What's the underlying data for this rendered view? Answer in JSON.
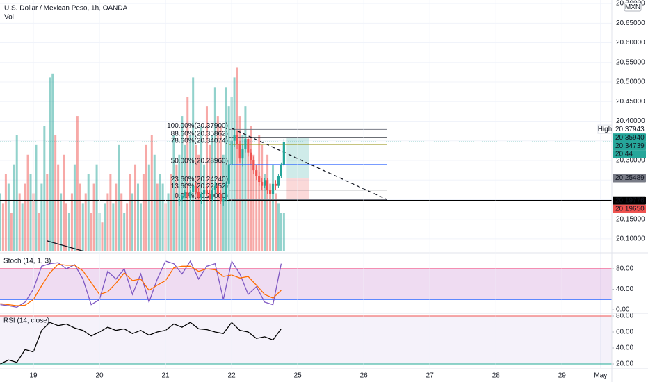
{
  "chart_data": [
    {
      "type": "candlestick",
      "title": "U.S. Dollar / Mexican Peso, 1h, OANDA",
      "currency": "MXN",
      "xlim": [
        -12.12,
        210.1
      ],
      "xticks": [
        {
          "value": 0,
          "label": "19"
        },
        {
          "value": 24,
          "label": "20"
        },
        {
          "value": 48,
          "label": "21"
        },
        {
          "value": 72,
          "label": "22"
        },
        {
          "value": 96,
          "label": "25"
        },
        {
          "value": 120,
          "label": "26"
        },
        {
          "value": 144,
          "label": "27"
        },
        {
          "value": 168,
          "label": "28"
        },
        {
          "value": 192,
          "label": "29"
        },
        {
          "value": 206,
          "label": "May"
        }
      ],
      "ylim": [
        20.068,
        20.709
      ],
      "yticks": [
        {
          "value": 20.1,
          "label": "20.10000"
        },
        {
          "value": 20.15,
          "label": "20.15000"
        },
        {
          "value": 20.2,
          "label": "20.20000"
        },
        {
          "value": 20.25,
          "label": "20.25000"
        },
        {
          "value": 20.3,
          "label": "20.30000"
        },
        {
          "value": 20.35,
          "label": "20.35000"
        },
        {
          "value": 20.4,
          "label": "20.40000"
        },
        {
          "value": 20.45,
          "label": "20.45000"
        },
        {
          "value": 20.5,
          "label": "20.50000"
        },
        {
          "value": 20.55,
          "label": "20.55000"
        },
        {
          "value": 20.6,
          "label": "20.60000"
        },
        {
          "value": 20.65,
          "label": "20.65000"
        },
        {
          "value": 20.7,
          "label": "20.70000"
        }
      ],
      "up_color": "#26a69a",
      "down_color": "#ef5350",
      "x": [
        53,
        54,
        55,
        56,
        57,
        58,
        59,
        60,
        61,
        62,
        63,
        64,
        65,
        66,
        67,
        68,
        69,
        70,
        71,
        72,
        73,
        74,
        75,
        76,
        77,
        78,
        79,
        80,
        81,
        82,
        83,
        84,
        85,
        86,
        87,
        88,
        89,
        90,
        91
      ],
      "open": [
        20.195,
        20.2,
        20.21,
        20.22,
        20.205,
        20.22,
        20.235,
        20.22,
        20.205,
        20.215,
        20.225,
        20.215,
        20.2,
        20.225,
        20.235,
        20.215,
        20.195,
        20.2,
        20.24,
        20.29,
        20.35,
        20.365,
        20.34,
        20.305,
        20.33,
        20.355,
        20.32,
        20.3,
        20.275,
        20.26,
        20.245,
        20.235,
        20.25,
        20.225,
        20.215,
        20.24,
        20.235,
        20.26,
        20.29
      ],
      "high": [
        20.205,
        20.215,
        20.225,
        20.235,
        20.225,
        20.24,
        20.245,
        20.23,
        20.22,
        20.23,
        20.235,
        20.225,
        20.23,
        20.245,
        20.24,
        20.225,
        20.205,
        20.245,
        20.3,
        20.36,
        20.379,
        20.375,
        20.35,
        20.34,
        20.365,
        20.36,
        20.33,
        20.31,
        20.29,
        20.27,
        20.255,
        20.255,
        20.255,
        20.235,
        20.245,
        20.25,
        20.265,
        20.295,
        20.355
      ],
      "low": [
        20.185,
        20.195,
        20.205,
        20.2,
        20.195,
        20.215,
        20.215,
        20.2,
        20.19,
        20.205,
        20.21,
        20.195,
        20.195,
        20.215,
        20.21,
        20.19,
        20.185,
        20.195,
        20.235,
        20.285,
        20.335,
        20.33,
        20.295,
        20.285,
        20.32,
        20.31,
        20.29,
        20.265,
        20.25,
        20.235,
        20.225,
        20.23,
        20.215,
        20.205,
        20.21,
        20.225,
        20.23,
        20.255,
        20.285
      ],
      "close": [
        20.2,
        20.21,
        20.22,
        20.205,
        20.22,
        20.235,
        20.22,
        20.205,
        20.215,
        20.225,
        20.215,
        20.2,
        20.225,
        20.235,
        20.215,
        20.195,
        20.2,
        20.24,
        20.29,
        20.35,
        20.365,
        20.34,
        20.305,
        20.33,
        20.355,
        20.32,
        20.3,
        20.275,
        20.26,
        20.245,
        20.235,
        20.25,
        20.225,
        20.215,
        20.24,
        20.235,
        20.26,
        20.29,
        20.347
      ],
      "volume": {
        "name": "Vol",
        "ylim": [
          0,
          130
        ],
        "x": [
          -12,
          -11,
          -10,
          -9,
          -8,
          -7,
          -6,
          -5,
          -4,
          -3,
          -2,
          -1,
          0,
          1,
          2,
          3,
          4,
          5,
          6,
          7,
          8,
          9,
          10,
          11,
          12,
          13,
          14,
          15,
          16,
          17,
          18,
          19,
          20,
          21,
          22,
          23,
          24,
          25,
          26,
          27,
          28,
          29,
          30,
          31,
          32,
          33,
          34,
          35,
          36,
          37,
          38,
          39,
          40,
          41,
          42,
          43,
          44,
          45,
          46,
          47,
          48,
          49,
          50,
          51,
          52,
          53,
          54,
          55,
          56,
          57,
          58,
          59,
          60,
          61,
          62,
          63,
          64,
          65,
          66,
          67,
          68,
          69,
          70,
          71,
          72,
          73,
          74,
          75,
          76,
          77,
          78,
          79,
          80,
          81,
          82,
          83,
          84,
          85,
          86,
          87,
          88,
          89,
          90,
          91
        ],
        "values": [
          30,
          25,
          40,
          35,
          20,
          45,
          60,
          30,
          25,
          35,
          50,
          40,
          30,
          55,
          20,
          35,
          65,
          40,
          90,
          92,
          60,
          45,
          30,
          50,
          25,
          20,
          30,
          45,
          70,
          35,
          25,
          30,
          40,
          20,
          35,
          45,
          20,
          15,
          25,
          30,
          40,
          25,
          35,
          55,
          30,
          20,
          25,
          40,
          30,
          45,
          35,
          25,
          40,
          55,
          45,
          60,
          50,
          35,
          40,
          35,
          25,
          30,
          40,
          60,
          45,
          50,
          70,
          55,
          80,
          60,
          90,
          55,
          50,
          65,
          45,
          75,
          55,
          60,
          85,
          70,
          65,
          50,
          85,
          75,
          80,
          90,
          95,
          70,
          60,
          75,
          55,
          65,
          50,
          45,
          60,
          55,
          40,
          50,
          35,
          45,
          30,
          25,
          20,
          20
        ],
        "up": [
          1,
          0,
          0,
          1,
          0,
          1,
          1,
          0,
          1,
          0,
          0,
          1,
          0,
          1,
          0,
          1,
          1,
          0,
          1,
          1,
          0,
          0,
          1,
          0,
          0,
          1,
          0,
          1,
          0,
          0,
          1,
          0,
          1,
          0,
          0,
          1,
          1,
          0,
          1,
          0,
          0,
          1,
          0,
          1,
          0,
          1,
          0,
          0,
          1,
          0,
          1,
          1,
          0,
          0,
          1,
          0,
          1,
          0,
          1,
          1,
          0,
          1,
          0,
          1,
          0,
          1,
          1,
          1,
          0,
          1,
          1,
          0,
          0,
          1,
          1,
          0,
          0,
          1,
          1,
          0,
          0,
          1,
          1,
          1,
          1,
          1,
          0,
          0,
          1,
          1,
          0,
          0,
          0,
          0,
          0,
          0,
          1,
          0,
          0,
          1,
          0,
          1,
          1,
          1
        ]
      },
      "fib_x": [
        71.2,
        128.5
      ],
      "fib_levels": [
        {
          "label": "100.00%(20.37900)",
          "value": 20.379,
          "color": "#787b86"
        },
        {
          "label": "88.60%(20.35862)",
          "value": 20.35862,
          "color": "#131722"
        },
        {
          "label": "78.60%(20.34074)",
          "value": 20.34074,
          "color": "#8d8a00"
        },
        {
          "label": "50.00%(20.28960)",
          "value": 20.2896,
          "color": "#2962ff"
        },
        {
          "label": "23.60%(20.24240)",
          "value": 20.2424,
          "color": "#8d8a00"
        },
        {
          "label": "13.60%(20.22452)",
          "value": 20.22452,
          "color": "#131722"
        },
        {
          "label": "0.00%(20.20000)",
          "value": 20.2,
          "color": "#787b86"
        }
      ],
      "trendlines": [
        {
          "x": [
            72,
            128.5
          ],
          "y": [
            20.382,
            20.2
          ],
          "dash": true
        },
        {
          "x": [
            5,
            22
          ],
          "y": [
            20.0947,
            20.061
          ],
          "dash": false
        }
      ],
      "horizontal_line": 20.19776,
      "current_price": 20.34739,
      "position": {
        "x": [
          92,
          100
        ],
        "entry": 20.25489,
        "target": 20.3594,
        "stop": 20.1965
      },
      "price_labels": [
        {
          "value": 20.37943,
          "label": "20.37943",
          "bg": "#ffffff",
          "fg": "#131722",
          "tag": "High"
        },
        {
          "value": 20.3594,
          "label": "20.35940",
          "bg": "#26a69a",
          "fg": "#ffffff"
        },
        {
          "value": 20.34739,
          "label": "20.34739",
          "bg": "#26a69a",
          "fg": "#ffffff",
          "time": "20:44"
        },
        {
          "value": 20.25489,
          "label": "20.25489",
          "bg": "#787b86",
          "fg": "#ffffff"
        },
        {
          "value": 20.19776,
          "label": "20.19776",
          "bg": "#000000",
          "fg": "#ffffff"
        },
        {
          "value": 20.1965,
          "label": "20.19650",
          "bg": "#ef5350",
          "fg": "#ffffff"
        }
      ]
    },
    {
      "type": "line",
      "title": "Stoch (14, 1, 3)",
      "ylim": [
        -5.4,
        108.5
      ],
      "yticks": [
        {
          "value": 0,
          "label": "0.00"
        },
        {
          "value": 40,
          "label": "40.00"
        },
        {
          "value": 80,
          "label": "80.00"
        }
      ],
      "bands": [
        {
          "value": 80,
          "color": "#e91e63",
          "dash": false
        },
        {
          "value": 20,
          "color": "#2962ff",
          "dash": false
        }
      ],
      "band_fill": "rgba(156,39,176,0.16)",
      "x": [
        -12,
        -9,
        -6,
        -3,
        0,
        3,
        6,
        9,
        12,
        15,
        18,
        21,
        24,
        27,
        30,
        33,
        36,
        39,
        42,
        45,
        48,
        51,
        54,
        57,
        60,
        63,
        66,
        69,
        72,
        75,
        78,
        81,
        84,
        87,
        90
      ],
      "series": [
        {
          "color": "#7e57c2",
          "values": [
            10,
            8,
            5,
            15,
            40,
            85,
            90,
            92,
            80,
            88,
            60,
            10,
            20,
            75,
            60,
            80,
            30,
            70,
            15,
            60,
            95,
            90,
            70,
            95,
            60,
            85,
            90,
            20,
            95,
            70,
            30,
            45,
            15,
            10,
            90
          ]
        },
        {
          "color": "#ff6d00",
          "values": [
            12,
            10,
            8,
            9,
            20,
            47,
            72,
            89,
            87,
            87,
            76,
            53,
            30,
            35,
            52,
            72,
            57,
            60,
            38,
            48,
            57,
            82,
            85,
            85,
            75,
            80,
            78,
            65,
            68,
            62,
            65,
            48,
            30,
            23,
            38
          ]
        }
      ]
    },
    {
      "type": "line",
      "title": "RSI (14, close)",
      "ylim": [
        14.8,
        82.6
      ],
      "yticks": [
        {
          "value": 20,
          "label": "20.00"
        },
        {
          "value": 40,
          "label": "40.00"
        },
        {
          "value": 60,
          "label": "60.00"
        },
        {
          "value": 80,
          "label": "80.00"
        }
      ],
      "bands": [
        {
          "value": 80,
          "color": "#ef5350",
          "dash": false
        },
        {
          "value": 20,
          "color": "#22ab94",
          "dash": false
        },
        {
          "value": 50,
          "color": "#9598a1",
          "dash": true
        }
      ],
      "band_fill": "rgba(126,87,194,0.08)",
      "x": [
        -12,
        -9,
        -6,
        -3,
        0,
        3,
        6,
        9,
        12,
        15,
        18,
        21,
        24,
        27,
        30,
        33,
        36,
        39,
        42,
        45,
        48,
        51,
        54,
        57,
        60,
        63,
        66,
        69,
        72,
        75,
        78,
        81,
        84,
        87,
        90
      ],
      "series": [
        {
          "color": "#000000",
          "values": [
            20,
            25,
            22,
            38,
            35,
            62,
            72,
            68,
            70,
            65,
            62,
            55,
            60,
            66,
            62,
            64,
            58,
            62,
            56,
            60,
            62,
            70,
            66,
            72,
            64,
            63,
            60,
            58,
            72,
            62,
            60,
            52,
            54,
            50,
            64
          ]
        }
      ]
    }
  ]
}
